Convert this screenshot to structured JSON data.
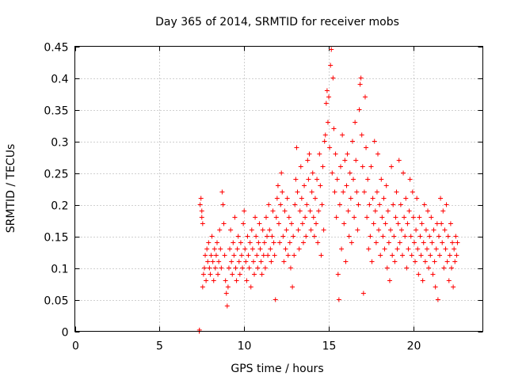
{
  "chart_data": {
    "type": "scatter",
    "title": "Day 365 of 2014, SRMTID for receiver mobs",
    "xlabel": "GPS time / hours",
    "ylabel": "SRMTID / TECUs",
    "xlim": [
      0,
      24.1
    ],
    "ylim": [
      0,
      0.45
    ],
    "x_ticks": [
      0,
      5,
      10,
      15,
      20
    ],
    "x_tick_labels": [
      "0",
      "5",
      "10",
      "15",
      "20"
    ],
    "y_ticks": [
      0,
      0.05,
      0.1,
      0.15,
      0.2,
      0.25,
      0.3,
      0.35,
      0.4,
      0.45
    ],
    "y_tick_labels": [
      "0",
      "0.05",
      "0.1",
      "0.15",
      "0.2",
      "0.25",
      "0.3",
      "0.35",
      "0.4",
      "0.45"
    ],
    "grid": true,
    "marker": "plus",
    "color": "#ff0000",
    "series": [
      {
        "name": "SRMTID",
        "points": [
          [
            7.35,
            0.0
          ],
          [
            7.36,
            0.002
          ],
          [
            7.4,
            0.2
          ],
          [
            7.45,
            0.21
          ],
          [
            7.5,
            0.19
          ],
          [
            7.5,
            0.18
          ],
          [
            7.55,
            0.17
          ],
          [
            7.55,
            0.07
          ],
          [
            7.6,
            0.09
          ],
          [
            7.65,
            0.1
          ],
          [
            7.7,
            0.12
          ],
          [
            7.75,
            0.08
          ],
          [
            7.8,
            0.13
          ],
          [
            7.85,
            0.11
          ],
          [
            7.9,
            0.14
          ],
          [
            7.95,
            0.1
          ],
          [
            8.0,
            0.09
          ],
          [
            8.05,
            0.12
          ],
          [
            8.1,
            0.15
          ],
          [
            8.15,
            0.11
          ],
          [
            8.2,
            0.08
          ],
          [
            8.25,
            0.13
          ],
          [
            8.3,
            0.1
          ],
          [
            8.35,
            0.12
          ],
          [
            8.4,
            0.14
          ],
          [
            8.45,
            0.09
          ],
          [
            8.5,
            0.11
          ],
          [
            8.55,
            0.16
          ],
          [
            8.6,
            0.13
          ],
          [
            8.65,
            0.1
          ],
          [
            8.7,
            0.22
          ],
          [
            8.75,
            0.2
          ],
          [
            8.8,
            0.17
          ],
          [
            8.85,
            0.12
          ],
          [
            8.9,
            0.08
          ],
          [
            8.95,
            0.06
          ],
          [
            9.0,
            0.04
          ],
          [
            9.05,
            0.07
          ],
          [
            9.1,
            0.1
          ],
          [
            9.15,
            0.13
          ],
          [
            9.2,
            0.16
          ],
          [
            9.25,
            0.11
          ],
          [
            9.3,
            0.09
          ],
          [
            9.35,
            0.14
          ],
          [
            9.4,
            0.12
          ],
          [
            9.45,
            0.18
          ],
          [
            9.5,
            0.1
          ],
          [
            9.55,
            0.08
          ],
          [
            9.6,
            0.13
          ],
          [
            9.65,
            0.15
          ],
          [
            9.7,
            0.11
          ],
          [
            9.75,
            0.09
          ],
          [
            9.8,
            0.14
          ],
          [
            9.85,
            0.12
          ],
          [
            9.9,
            0.1
          ],
          [
            9.95,
            0.17
          ],
          [
            10.0,
            0.19
          ],
          [
            10.05,
            0.13
          ],
          [
            10.1,
            0.11
          ],
          [
            10.15,
            0.08
          ],
          [
            10.2,
            0.15
          ],
          [
            10.25,
            0.12
          ],
          [
            10.3,
            0.1
          ],
          [
            10.35,
            0.14
          ],
          [
            10.4,
            0.07
          ],
          [
            10.45,
            0.16
          ],
          [
            10.5,
            0.13
          ],
          [
            10.55,
            0.11
          ],
          [
            10.6,
            0.09
          ],
          [
            10.65,
            0.18
          ],
          [
            10.7,
            0.15
          ],
          [
            10.75,
            0.12
          ],
          [
            10.8,
            0.1
          ],
          [
            10.85,
            0.14
          ],
          [
            10.9,
            0.17
          ],
          [
            10.95,
            0.13
          ],
          [
            11.0,
            0.11
          ],
          [
            11.05,
            0.09
          ],
          [
            11.1,
            0.16
          ],
          [
            11.15,
            0.12
          ],
          [
            11.2,
            0.14
          ],
          [
            11.25,
            0.1
          ],
          [
            11.3,
            0.18
          ],
          [
            11.35,
            0.15
          ],
          [
            11.4,
            0.12
          ],
          [
            11.45,
            0.2
          ],
          [
            11.5,
            0.16
          ],
          [
            11.55,
            0.13
          ],
          [
            11.6,
            0.11
          ],
          [
            11.65,
            0.15
          ],
          [
            11.7,
            0.19
          ],
          [
            11.75,
            0.14
          ],
          [
            11.8,
            0.12
          ],
          [
            11.85,
            0.05
          ],
          [
            11.9,
            0.18
          ],
          [
            11.95,
            0.21
          ],
          [
            12.0,
            0.23
          ],
          [
            12.05,
            0.17
          ],
          [
            12.1,
            0.14
          ],
          [
            12.15,
            0.2
          ],
          [
            12.2,
            0.25
          ],
          [
            12.25,
            0.22
          ],
          [
            12.3,
            0.15
          ],
          [
            12.35,
            0.11
          ],
          [
            12.4,
            0.19
          ],
          [
            12.45,
            0.13
          ],
          [
            12.5,
            0.16
          ],
          [
            12.55,
            0.21
          ],
          [
            12.6,
            0.12
          ],
          [
            12.65,
            0.18
          ],
          [
            12.7,
            0.14
          ],
          [
            12.75,
            0.1
          ],
          [
            12.8,
            0.17
          ],
          [
            12.85,
            0.07
          ],
          [
            12.9,
            0.15
          ],
          [
            12.95,
            0.12
          ],
          [
            13.0,
            0.2
          ],
          [
            13.05,
            0.24
          ],
          [
            13.1,
            0.29
          ],
          [
            13.15,
            0.22
          ],
          [
            13.2,
            0.16
          ],
          [
            13.25,
            0.13
          ],
          [
            13.3,
            0.19
          ],
          [
            13.35,
            0.26
          ],
          [
            13.4,
            0.21
          ],
          [
            13.45,
            0.17
          ],
          [
            13.5,
            0.14
          ],
          [
            13.55,
            0.23
          ],
          [
            13.6,
            0.18
          ],
          [
            13.65,
            0.15
          ],
          [
            13.7,
            0.2
          ],
          [
            13.75,
            0.27
          ],
          [
            13.8,
            0.24
          ],
          [
            13.85,
            0.28
          ],
          [
            13.9,
            0.19
          ],
          [
            13.95,
            0.16
          ],
          [
            14.0,
            0.22
          ],
          [
            14.05,
            0.25
          ],
          [
            14.1,
            0.18
          ],
          [
            14.15,
            0.15
          ],
          [
            14.2,
            0.21
          ],
          [
            14.25,
            0.17
          ],
          [
            14.3,
            0.24
          ],
          [
            14.35,
            0.14
          ],
          [
            14.4,
            0.19
          ],
          [
            14.45,
            0.28
          ],
          [
            14.5,
            0.23
          ],
          [
            14.55,
            0.12
          ],
          [
            14.6,
            0.2
          ],
          [
            14.65,
            0.26
          ],
          [
            14.7,
            0.16
          ],
          [
            14.75,
            0.3
          ],
          [
            14.8,
            0.31
          ],
          [
            14.85,
            0.36
          ],
          [
            14.9,
            0.38
          ],
          [
            14.95,
            0.33
          ],
          [
            15.0,
            0.37
          ],
          [
            15.05,
            0.29
          ],
          [
            15.1,
            0.42
          ],
          [
            15.15,
            0.445
          ],
          [
            15.2,
            0.25
          ],
          [
            15.25,
            0.4
          ],
          [
            15.3,
            0.32
          ],
          [
            15.35,
            0.22
          ],
          [
            15.4,
            0.28
          ],
          [
            15.45,
            0.18
          ],
          [
            15.5,
            0.24
          ],
          [
            15.55,
            0.09
          ],
          [
            15.6,
            0.05
          ],
          [
            15.65,
            0.2
          ],
          [
            15.7,
            0.26
          ],
          [
            15.75,
            0.13
          ],
          [
            15.8,
            0.31
          ],
          [
            15.85,
            0.22
          ],
          [
            15.9,
            0.17
          ],
          [
            15.95,
            0.27
          ],
          [
            16.0,
            0.11
          ],
          [
            16.05,
            0.23
          ],
          [
            16.1,
            0.28
          ],
          [
            16.15,
            0.19
          ],
          [
            16.2,
            0.15
          ],
          [
            16.25,
            0.25
          ],
          [
            16.3,
            0.21
          ],
          [
            16.35,
            0.14
          ],
          [
            16.4,
            0.3
          ],
          [
            16.45,
            0.24
          ],
          [
            16.5,
            0.18
          ],
          [
            16.55,
            0.33
          ],
          [
            16.6,
            0.27
          ],
          [
            16.65,
            0.22
          ],
          [
            16.7,
            0.16
          ],
          [
            16.75,
            0.2
          ],
          [
            16.8,
            0.35
          ],
          [
            16.85,
            0.39
          ],
          [
            16.9,
            0.4
          ],
          [
            16.95,
            0.31
          ],
          [
            17.0,
            0.26
          ],
          [
            17.05,
            0.06
          ],
          [
            17.1,
            0.22
          ],
          [
            17.15,
            0.37
          ],
          [
            17.2,
            0.29
          ],
          [
            17.25,
            0.18
          ],
          [
            17.3,
            0.24
          ],
          [
            17.35,
            0.13
          ],
          [
            17.4,
            0.2
          ],
          [
            17.45,
            0.15
          ],
          [
            17.5,
            0.26
          ],
          [
            17.55,
            0.11
          ],
          [
            17.6,
            0.21
          ],
          [
            17.65,
            0.17
          ],
          [
            17.7,
            0.3
          ],
          [
            17.75,
            0.19
          ],
          [
            17.8,
            0.14
          ],
          [
            17.85,
            0.22
          ],
          [
            17.9,
            0.28
          ],
          [
            17.95,
            0.16
          ],
          [
            18.0,
            0.2
          ],
          [
            18.05,
            0.12
          ],
          [
            18.1,
            0.24
          ],
          [
            18.15,
            0.18
          ],
          [
            18.2,
            0.15
          ],
          [
            18.25,
            0.21
          ],
          [
            18.3,
            0.13
          ],
          [
            18.35,
            0.17
          ],
          [
            18.4,
            0.23
          ],
          [
            18.45,
            0.1
          ],
          [
            18.5,
            0.19
          ],
          [
            18.55,
            0.14
          ],
          [
            18.6,
            0.08
          ],
          [
            18.65,
            0.16
          ],
          [
            18.7,
            0.26
          ],
          [
            18.75,
            0.12
          ],
          [
            18.8,
            0.2
          ],
          [
            18.85,
            0.15
          ],
          [
            18.9,
            0.11
          ],
          [
            18.95,
            0.18
          ],
          [
            19.0,
            0.22
          ],
          [
            19.05,
            0.13
          ],
          [
            19.1,
            0.17
          ],
          [
            19.15,
            0.27
          ],
          [
            19.2,
            0.14
          ],
          [
            19.25,
            0.2
          ],
          [
            19.3,
            0.16
          ],
          [
            19.35,
            0.12
          ],
          [
            19.4,
            0.25
          ],
          [
            19.45,
            0.18
          ],
          [
            19.5,
            0.15
          ],
          [
            19.55,
            0.21
          ],
          [
            19.6,
            0.1
          ],
          [
            19.65,
            0.17
          ],
          [
            19.7,
            0.13
          ],
          [
            19.75,
            0.19
          ],
          [
            19.8,
            0.24
          ],
          [
            19.85,
            0.15
          ],
          [
            19.9,
            0.12
          ],
          [
            19.95,
            0.22
          ],
          [
            20.0,
            0.18
          ],
          [
            20.05,
            0.14
          ],
          [
            20.1,
            0.11
          ],
          [
            20.15,
            0.16
          ],
          [
            20.2,
            0.21
          ],
          [
            20.25,
            0.13
          ],
          [
            20.3,
            0.09
          ],
          [
            20.35,
            0.18
          ],
          [
            20.4,
            0.15
          ],
          [
            20.45,
            0.12
          ],
          [
            20.5,
            0.17
          ],
          [
            20.55,
            0.08
          ],
          [
            20.6,
            0.14
          ],
          [
            20.65,
            0.2
          ],
          [
            20.7,
            0.11
          ],
          [
            20.75,
            0.16
          ],
          [
            20.8,
            0.13
          ],
          [
            20.85,
            0.19
          ],
          [
            20.9,
            0.1
          ],
          [
            20.95,
            0.15
          ],
          [
            21.0,
            0.12
          ],
          [
            21.05,
            0.18
          ],
          [
            21.1,
            0.14
          ],
          [
            21.15,
            0.09
          ],
          [
            21.2,
            0.16
          ],
          [
            21.25,
            0.11
          ],
          [
            21.3,
            0.07
          ],
          [
            21.35,
            0.13
          ],
          [
            21.4,
            0.17
          ],
          [
            21.45,
            0.05
          ],
          [
            21.5,
            0.15
          ],
          [
            21.55,
            0.12
          ],
          [
            21.6,
            0.21
          ],
          [
            21.65,
            0.17
          ],
          [
            21.7,
            0.14
          ],
          [
            21.75,
            0.19
          ],
          [
            21.8,
            0.1
          ],
          [
            21.85,
            0.16
          ],
          [
            21.9,
            0.13
          ],
          [
            21.95,
            0.2
          ],
          [
            22.0,
            0.11
          ],
          [
            22.05,
            0.15
          ],
          [
            22.1,
            0.08
          ],
          [
            22.15,
            0.12
          ],
          [
            22.2,
            0.17
          ],
          [
            22.25,
            0.1
          ],
          [
            22.3,
            0.14
          ],
          [
            22.35,
            0.07
          ],
          [
            22.4,
            0.13
          ],
          [
            22.45,
            0.11
          ],
          [
            22.5,
            0.15
          ],
          [
            22.55,
            0.12
          ],
          [
            22.6,
            0.14
          ]
        ]
      }
    ]
  }
}
